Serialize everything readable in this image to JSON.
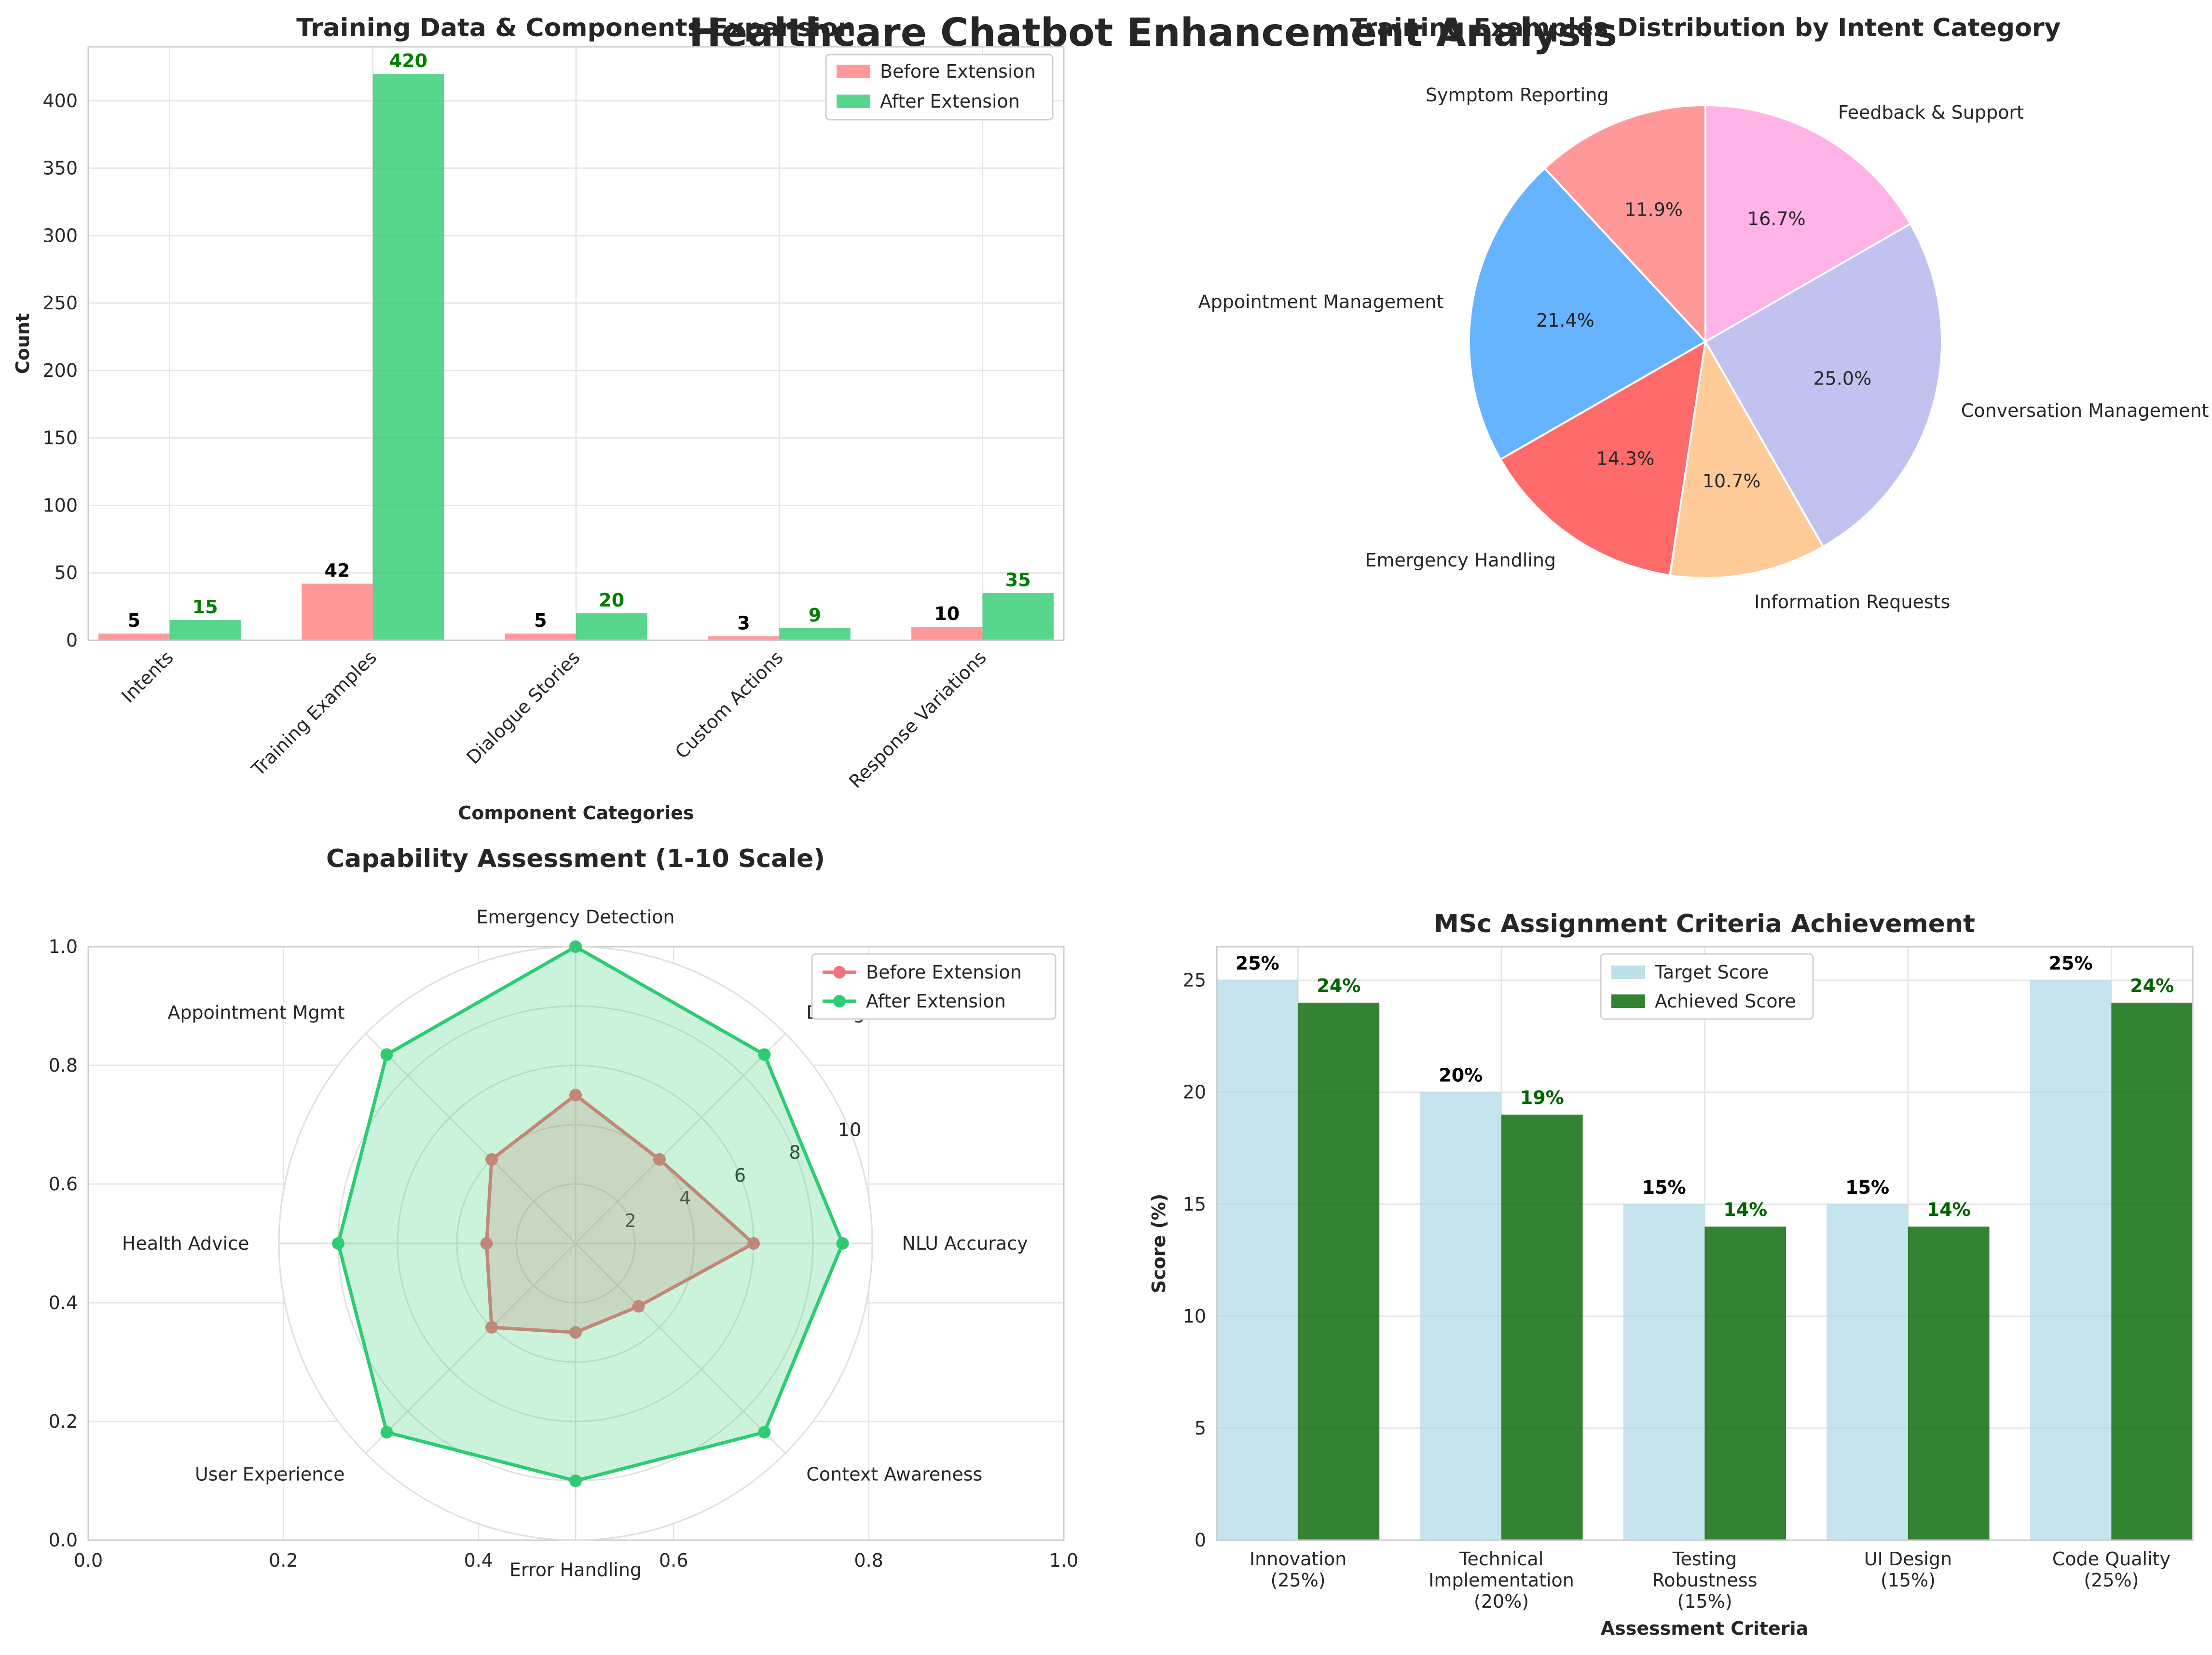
{
  "figure": {
    "suptitle": "Healthcare Chatbot Enhancement Analysis"
  },
  "chart_data": [
    {
      "type": "bar",
      "title": "Training Data & Components Expansion",
      "xlabel": "Component Categories",
      "ylabel": "Count",
      "ylim": [
        0,
        440
      ],
      "yticks": [
        0,
        50,
        100,
        150,
        200,
        250,
        300,
        350,
        400
      ],
      "categories": [
        "Intents",
        "Training Examples",
        "Dialogue Stories",
        "Custom Actions",
        "Response Variations"
      ],
      "series": [
        {
          "name": "Before Extension",
          "values": [
            5,
            42,
            5,
            3,
            10
          ],
          "color": "#ff7f7f",
          "label_color": "#000000"
        },
        {
          "name": "After Extension",
          "values": [
            15,
            420,
            20,
            9,
            35
          ],
          "color": "#2ecc71",
          "label_color": "#008000"
        }
      ],
      "legend": "top-right",
      "grid": true
    },
    {
      "type": "pie",
      "title": "Training Examples Distribution by Intent Category",
      "labels": [
        "Symptom Reporting",
        "Appointment Management",
        "Emergency Handling",
        "Information Requests",
        "Conversation Management",
        "Feedback & Support"
      ],
      "values": [
        11.9,
        21.4,
        14.3,
        10.7,
        25.0,
        16.7
      ],
      "pct_labels": [
        "11.9%",
        "21.4%",
        "14.3%",
        "10.7%",
        "25.0%",
        "16.7%"
      ],
      "colors": [
        "#ff9999",
        "#66b3ff",
        "#ff6b6b",
        "#ffcc99",
        "#c2c2f0",
        "#ffb3e6"
      ]
    },
    {
      "type": "radar",
      "title": "Capability Assessment (1-10 Scale)",
      "axes": [
        "NLU Accuracy",
        "Dialogue Flow",
        "Emergency Detection",
        "Appointment Mgmt",
        "Health Advice",
        "User Experience",
        "Error Handling",
        "Context Awareness"
      ],
      "rlim": [
        0,
        10
      ],
      "rticks": [
        2,
        4,
        6,
        8,
        10
      ],
      "series": [
        {
          "name": "Before Extension",
          "values": [
            6,
            4,
            5,
            4,
            3,
            4,
            3,
            3
          ],
          "color": "#f0727a"
        },
        {
          "name": "After Extension",
          "values": [
            9,
            9,
            10,
            9,
            8,
            9,
            8,
            9
          ],
          "color": "#2ecc71"
        }
      ],
      "frame_ticks": {
        "x": [
          "0.0",
          "0.2",
          "0.4",
          "0.6",
          "0.8",
          "1.0"
        ],
        "y": [
          "0.0",
          "0.2",
          "0.4",
          "0.6",
          "0.8",
          "1.0"
        ]
      },
      "legend": "top-right"
    },
    {
      "type": "bar",
      "title": "MSc Assignment Criteria Achievement",
      "xlabel": "Assessment Criteria",
      "ylabel": "Score (%)",
      "ylim": [
        0,
        26.5
      ],
      "yticks": [
        0,
        5,
        10,
        15,
        20,
        25
      ],
      "categories": [
        "Innovation\n(25%)",
        "Technical\nImplementation\n(20%)",
        "Testing\nRobustness\n(15%)",
        "UI Design\n(15%)",
        "Code Quality\n(25%)"
      ],
      "series": [
        {
          "name": "Target Score",
          "values": [
            25,
            20,
            15,
            15,
            25
          ],
          "labels": [
            "25%",
            "20%",
            "15%",
            "15%",
            "25%"
          ],
          "color": "#add8e6",
          "label_color": "#000000"
        },
        {
          "name": "Achieved Score",
          "values": [
            24,
            19,
            14,
            14,
            24
          ],
          "labels": [
            "24%",
            "19%",
            "14%",
            "14%",
            "24%"
          ],
          "color": "#006400",
          "label_color": "#006400"
        }
      ],
      "legend": "top-center",
      "grid": true
    }
  ]
}
